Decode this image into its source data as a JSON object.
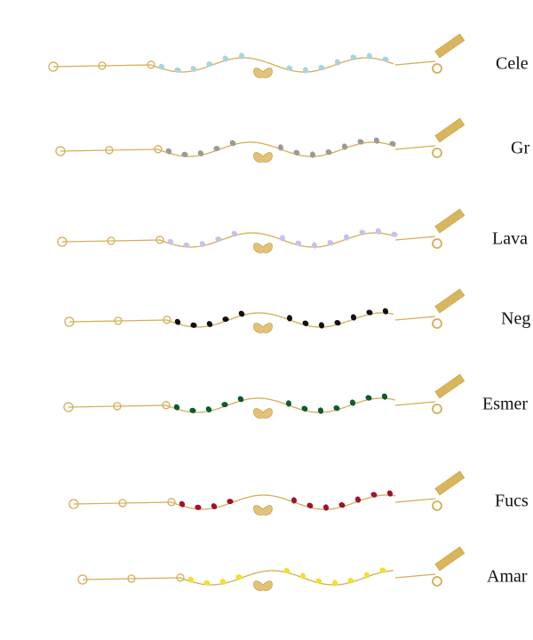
{
  "labels": [
    "Cele",
    "Gr",
    "Lava",
    "Neg",
    "Esmer",
    "Fucs",
    "Amar"
  ]
}
